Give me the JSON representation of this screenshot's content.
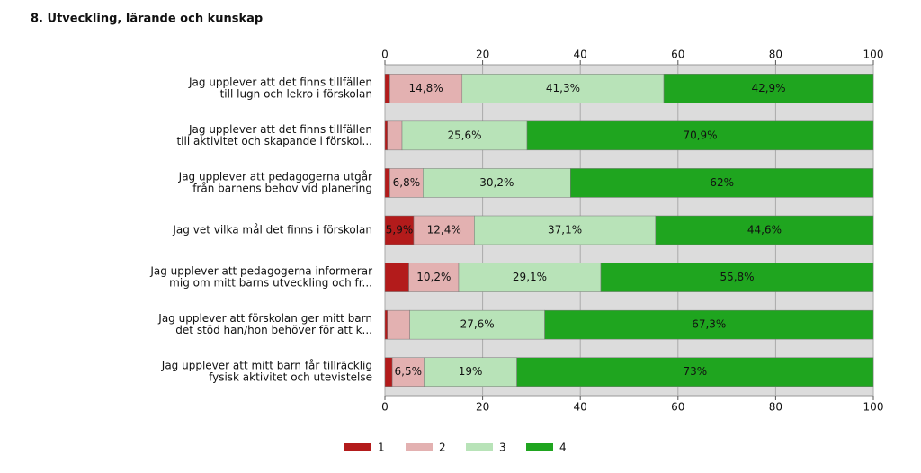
{
  "chart_data": {
    "type": "stacked-bar",
    "orientation": "horizontal",
    "title": "8. Utveckling, lärande och kunskap",
    "categories": [
      [
        "Jag upplever att det finns tillfällen",
        "till lugn och lekro i förskolan"
      ],
      [
        "Jag upplever att det finns tillfällen",
        "till aktivitet och skapande i förskol..."
      ],
      [
        "Jag upplever att pedagogerna utgår",
        "från barnens behov vid planering"
      ],
      [
        "Jag vet vilka mål det finns i förskolan"
      ],
      [
        "Jag upplever att pedagogerna informerar",
        "mig om mitt barns utveckling och fr..."
      ],
      [
        "Jag upplever att förskolan ger mitt barn",
        "det stöd han/hon behöver för att k..."
      ],
      [
        "Jag upplever att mitt barn får tillräcklig",
        "fysisk aktivitet och utevistelse"
      ]
    ],
    "series": [
      {
        "name": "1",
        "color": "#b31b1b",
        "values": [
          1.0,
          0.5,
          1.0,
          5.9,
          4.9,
          0.5,
          1.5
        ],
        "value_labels": [
          null,
          null,
          null,
          "5,9%",
          null,
          null,
          null
        ]
      },
      {
        "name": "2",
        "color": "#e3b1b1",
        "values": [
          14.8,
          3.0,
          6.8,
          12.4,
          10.2,
          4.6,
          6.5
        ],
        "value_labels": [
          "14,8%",
          null,
          "6,8%",
          "12,4%",
          "10,2%",
          null,
          "6,5%"
        ]
      },
      {
        "name": "3",
        "color": "#b8e3b8",
        "values": [
          41.3,
          25.6,
          30.2,
          37.1,
          29.1,
          27.6,
          19
        ],
        "value_labels": [
          "41,3%",
          "25,6%",
          "30,2%",
          "37,1%",
          "29,1%",
          "27,6%",
          "19%"
        ]
      },
      {
        "name": "4",
        "color": "#1fa51f",
        "values": [
          42.9,
          70.9,
          62,
          44.6,
          55.8,
          67.3,
          73
        ],
        "value_labels": [
          "42,9%",
          "70,9%",
          "62%",
          "44,6%",
          "55,8%",
          "67,3%",
          "73%"
        ]
      }
    ],
    "xlim": [
      0,
      100
    ],
    "xticks": [
      0,
      20,
      40,
      60,
      80,
      100
    ],
    "grid": true
  }
}
